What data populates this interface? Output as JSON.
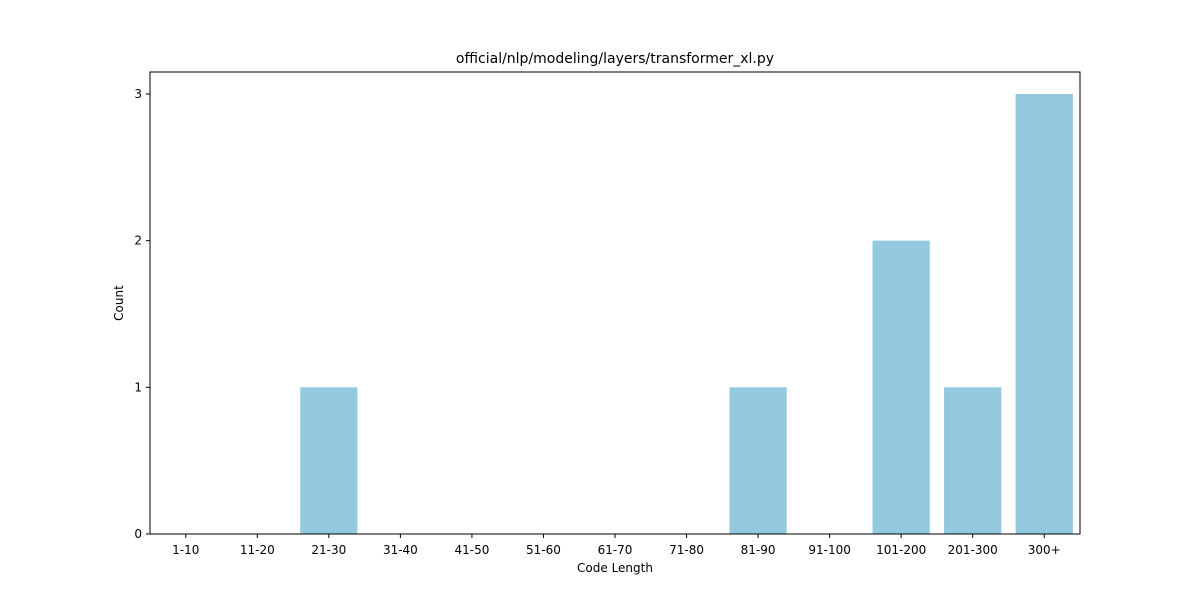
{
  "chart_data": {
    "type": "bar",
    "title": "official/nlp/modeling/layers/transformer_xl.py",
    "xlabel": "Code Length",
    "ylabel": "Count",
    "categories": [
      "1-10",
      "11-20",
      "21-30",
      "31-40",
      "41-50",
      "51-60",
      "61-70",
      "71-80",
      "81-90",
      "91-100",
      "101-200",
      "201-300",
      "300+"
    ],
    "values": [
      0,
      0,
      1,
      0,
      0,
      0,
      0,
      0,
      1,
      0,
      2,
      1,
      3
    ],
    "ylim": [
      0,
      3.15
    ],
    "yticks": [
      0,
      1,
      2,
      3
    ],
    "bar_color": "#92c9de",
    "grid": false,
    "legend": "none"
  }
}
